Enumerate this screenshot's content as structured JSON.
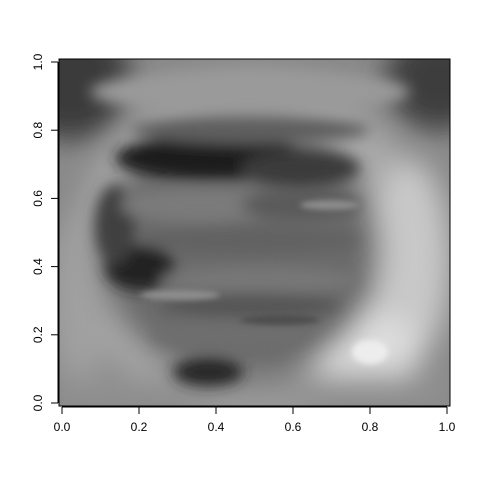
{
  "chart_data": {
    "type": "heatmap",
    "title": "",
    "xlabel": "",
    "ylabel": "",
    "xlim": [
      0,
      1
    ],
    "ylim": [
      0,
      1
    ],
    "colormap": "grayscale",
    "x_ticks": [
      0.0,
      0.2,
      0.4,
      0.6,
      0.8,
      1.0
    ],
    "x_tick_labels": [
      "0.0",
      "0.2",
      "0.4",
      "0.6",
      "0.8",
      "1.0"
    ],
    "y_ticks": [
      0.0,
      0.2,
      0.4,
      0.6,
      0.8,
      1.0
    ],
    "y_tick_labels": [
      "0.0",
      "0.2",
      "0.4",
      "0.6",
      "0.8",
      "1.0"
    ],
    "frame_color": "#000000",
    "grid": false,
    "legend": "none"
  }
}
